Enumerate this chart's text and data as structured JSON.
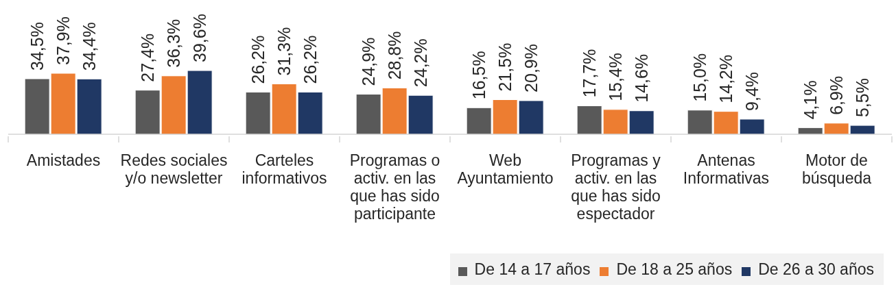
{
  "chart_data": {
    "type": "bar",
    "categories": [
      "Amistades",
      "Redes sociales y/o newsletter",
      "Carteles informativos",
      "Programas o activ. en las que has sido participante",
      "Web Ayuntamiento",
      "Programas y activ. en las que has sido espectador",
      "Antenas Informativas",
      "Motor de búsqueda"
    ],
    "series": [
      {
        "name": "De 14 a 17 años",
        "color": "#595959",
        "values": [
          34.5,
          27.4,
          26.2,
          24.9,
          16.5,
          17.7,
          15.0,
          4.1
        ],
        "value_labels": [
          "34,5%",
          "27,4%",
          "26,2%",
          "24,9%",
          "16,5%",
          "17,7%",
          "15,0%",
          "4,1%"
        ]
      },
      {
        "name": "De 18 a 25 años",
        "color": "#ed7d31",
        "values": [
          37.9,
          36.3,
          31.3,
          28.8,
          21.5,
          15.4,
          14.2,
          6.9
        ],
        "value_labels": [
          "37,9%",
          "36,3%",
          "31,3%",
          "28,8%",
          "21,5%",
          "15,4%",
          "14,2%",
          "6,9%"
        ]
      },
      {
        "name": "De 26 a 30 años",
        "color": "#203864",
        "values": [
          34.4,
          39.6,
          26.2,
          24.2,
          20.9,
          14.6,
          9.4,
          5.5
        ],
        "value_labels": [
          "34,4%",
          "39,6%",
          "26,2%",
          "24,2%",
          "20,9%",
          "14,6%",
          "9,4%",
          "5,5%"
        ]
      }
    ],
    "tick_labels": "x",
    "legend": "bottom right"
  }
}
